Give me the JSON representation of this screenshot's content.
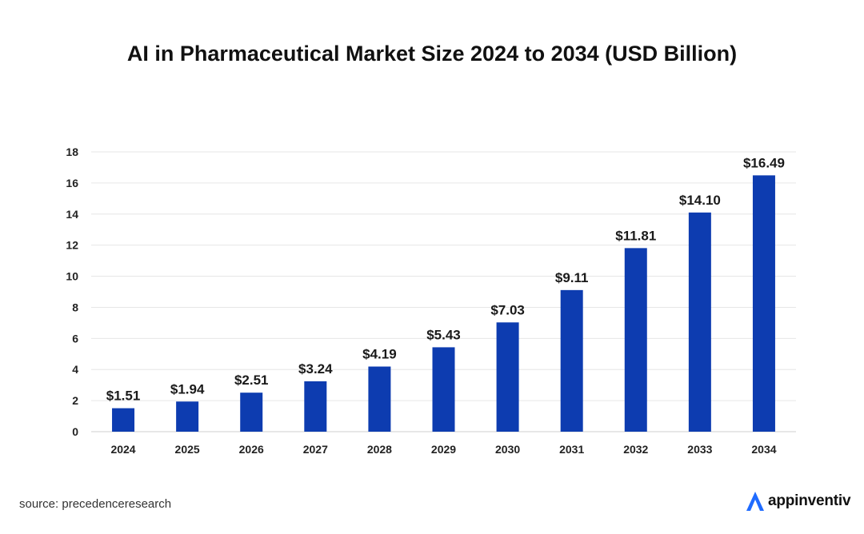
{
  "chart_data": {
    "type": "bar",
    "title": "AI in Pharmaceutical Market Size 2024 to 2034 (USD Billion)",
    "categories": [
      "2024",
      "2025",
      "2026",
      "2027",
      "2028",
      "2029",
      "2030",
      "2031",
      "2032",
      "2033",
      "2034"
    ],
    "values": [
      1.51,
      1.94,
      2.51,
      3.24,
      4.19,
      5.43,
      7.03,
      9.11,
      11.81,
      14.1,
      16.49
    ],
    "data_labels": [
      "$1.51",
      "$1.94",
      "$2.51",
      "$3.24",
      "$4.19",
      "$5.43",
      "$7.03",
      "$9.11",
      "$11.81",
      "$14.10",
      "$16.49"
    ],
    "ylim": [
      0,
      18
    ],
    "yticks": [
      0,
      2,
      4,
      6,
      8,
      10,
      12,
      14,
      16,
      18
    ],
    "xlabel": "",
    "ylabel": "",
    "grid": true,
    "bar_color": "#0d3cb0",
    "grid_color": "#e6e6e6"
  },
  "footer": {
    "source": "source: precedenceresearch",
    "brand": "appinventiv",
    "brand_icon": "appinventiv-logo-icon",
    "brand_color": "#1f6bff"
  }
}
